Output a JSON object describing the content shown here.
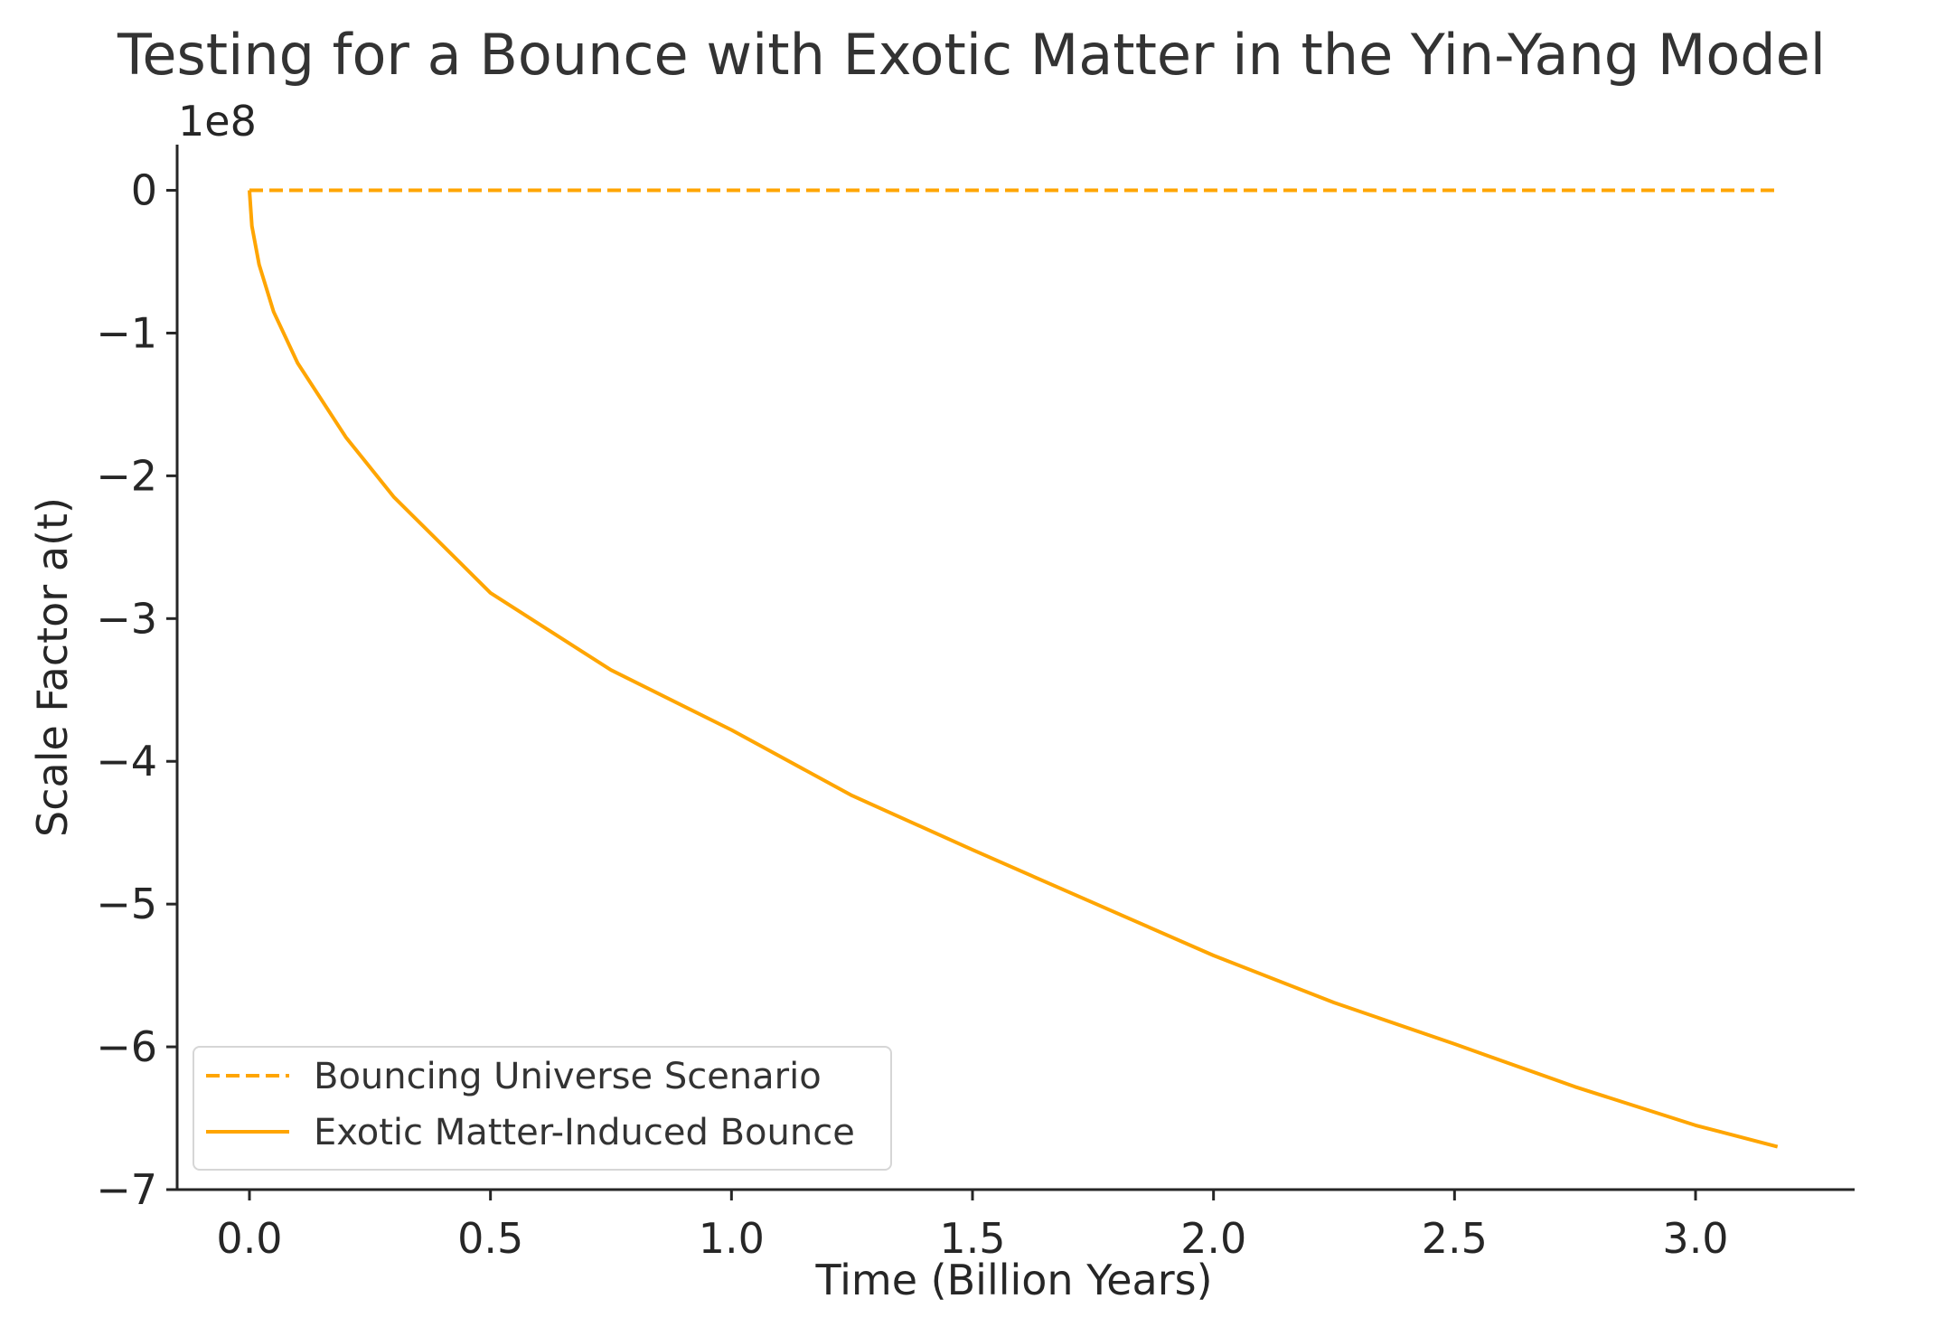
{
  "chart_data": {
    "type": "line",
    "title": "Testing for a Bounce with Exotic Matter in the Yin-Yang Model",
    "xlabel": "Time (Billion Years)",
    "ylabel": "Scale Factor a(t)",
    "y_offset_label": "1e8",
    "xlim": [
      -0.15,
      3.33
    ],
    "ylim": [
      -7.0,
      0.32
    ],
    "y_multiplier": 100000000,
    "x_ticks": [
      0.0,
      0.5,
      1.0,
      1.5,
      2.0,
      2.5,
      3.0
    ],
    "x_tick_labels": [
      "0.0",
      "0.5",
      "1.0",
      "1.5",
      "2.0",
      "2.5",
      "3.0"
    ],
    "y_ticks": [
      0,
      -1,
      -2,
      -3,
      -4,
      -5,
      -6,
      -7
    ],
    "y_tick_labels": [
      "0",
      "−1",
      "−2",
      "−3",
      "−4",
      "−5",
      "−6",
      "−7"
    ],
    "grid": false,
    "legend_position": "lower-left",
    "series": [
      {
        "name": "Bouncing Universe Scenario",
        "color": "#FFA500",
        "style": "dashed",
        "x": [
          0.0,
          0.5,
          1.0,
          1.5,
          2.0,
          2.5,
          3.0,
          3.17
        ],
        "y": [
          0,
          0,
          0,
          0,
          0,
          0,
          0,
          0
        ]
      },
      {
        "name": "Exotic Matter-Induced Bounce",
        "color": "#FFA500",
        "style": "solid",
        "x": [
          0.0,
          0.005,
          0.02,
          0.05,
          0.1,
          0.2,
          0.3,
          0.5,
          0.75,
          1.0,
          1.25,
          1.5,
          1.75,
          2.0,
          2.25,
          2.5,
          2.75,
          3.0,
          3.17
        ],
        "y": [
          0.0,
          -0.25,
          -0.52,
          -0.85,
          -1.21,
          -1.73,
          -2.15,
          -2.82,
          -3.36,
          -3.78,
          -4.24,
          -4.62,
          -4.99,
          -5.36,
          -5.69,
          -5.98,
          -6.28,
          -6.55,
          -6.7
        ]
      }
    ]
  }
}
